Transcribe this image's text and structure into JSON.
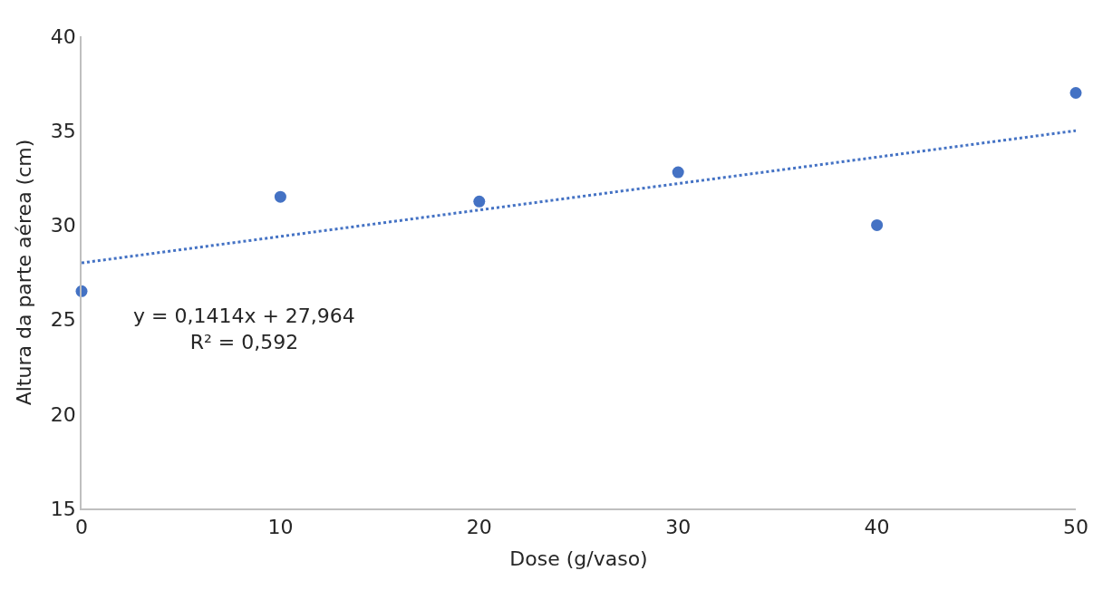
{
  "chart_data": {
    "type": "scatter",
    "xlabel": "Dose (g/vaso)",
    "ylabel": "Altura da parte aérea (cm)",
    "xlim": [
      0,
      50
    ],
    "xticks": [
      0,
      10,
      20,
      30,
      40,
      50
    ],
    "ylim": [
      15,
      40
    ],
    "yticks": [
      15,
      20,
      25,
      30,
      35,
      40
    ],
    "grid": false,
    "annotations": [
      "y = 0,1414x + 27,964\nR² = 0,592"
    ],
    "series": [
      {
        "color": "#4472c4",
        "marker": "circle",
        "x": [
          0,
          10,
          20,
          30,
          40,
          50
        ],
        "values": [
          26.5,
          31.5,
          31.25,
          32.8,
          30,
          37
        ]
      },
      {
        "type": "line",
        "color": "#4472c4",
        "line_style": "dotted",
        "marker": "none",
        "x": [
          0,
          50
        ],
        "values": [
          28,
          35
        ]
      }
    ]
  }
}
